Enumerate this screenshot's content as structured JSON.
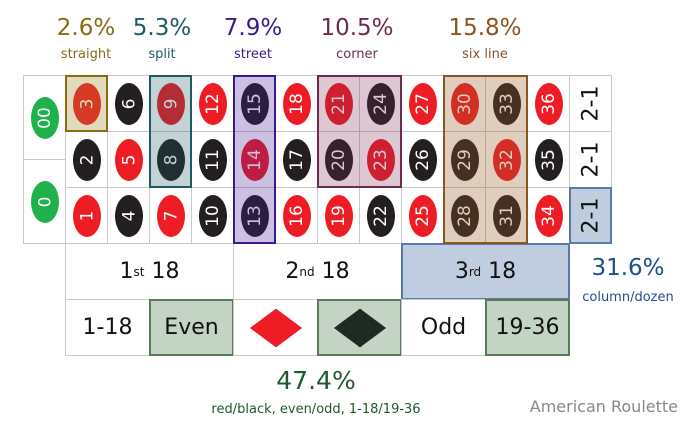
{
  "bets": [
    {
      "pct": "2.6%",
      "name": "straight",
      "color": "#8a6a10"
    },
    {
      "pct": "5.3%",
      "name": "split",
      "color": "#1e5a6a"
    },
    {
      "pct": "7.9%",
      "name": "street",
      "color": "#3a1a8a"
    },
    {
      "pct": "10.5%",
      "name": "corner",
      "color": "#6e2a50"
    },
    {
      "pct": "15.8%",
      "name": "six line",
      "color": "#8a5520"
    }
  ],
  "zeros": [
    "00",
    "0"
  ],
  "red_numbers": [
    1,
    3,
    5,
    7,
    9,
    12,
    14,
    16,
    18,
    19,
    21,
    23,
    25,
    27,
    30,
    32,
    34,
    36
  ],
  "column_label": "2-1",
  "dozens": [
    {
      "ord": "1",
      "sup": "st",
      "rest": " 18"
    },
    {
      "ord": "2",
      "sup": "nd",
      "rest": " 18"
    },
    {
      "ord": "3",
      "sup": "rd",
      "rest": " 18"
    }
  ],
  "outside": {
    "low": "1-18",
    "even": "Even",
    "odd": "Odd",
    "high": "19-36",
    "red": "red-diamond",
    "black": "black-diamond"
  },
  "column_dozen": {
    "pct": "31.6%",
    "label": "column/dozen",
    "color": "#1f4e8c"
  },
  "even_money": {
    "pct": "47.4%",
    "label": "red/black, even/odd, 1-18/19-36",
    "color": "#1e5a2e"
  },
  "title": "American Roulette"
}
